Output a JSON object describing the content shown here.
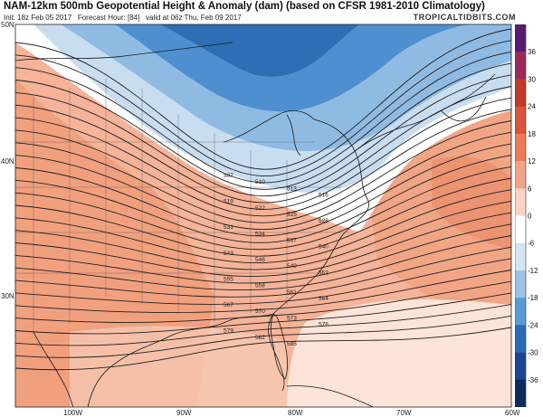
{
  "header": {
    "title": "NAM-12km 500mb Geopotential Height & Anomaly (dam) (based on CFSR 1981-2010 Climatology)",
    "init": "Init: 18z Feb 05 2017",
    "forecast_hour": "Forecast Hour: [84]",
    "valid": "valid at 06z Thu, Feb 09 2017",
    "site": "TROPICALTIDBITS.COM"
  },
  "axes": {
    "lat_labels": [
      "50N",
      "40N",
      "30N"
    ],
    "lon_labels": [
      "100W",
      "90W",
      "80W",
      "70W",
      "60W"
    ]
  },
  "colorbar": {
    "ticks": [
      "36",
      "30",
      "24",
      "18",
      "12",
      "6",
      "0",
      "-6",
      "-12",
      "-18",
      "-24",
      "-30",
      "-36"
    ],
    "colors": [
      "#5a1a6e",
      "#9b2a5a",
      "#c0392b",
      "#d9553c",
      "#eb7b5b",
      "#f3a488",
      "#fad3c2",
      "#ffffff",
      "#d4e4f3",
      "#9cc3e6",
      "#5a9bd5",
      "#2b6cb8",
      "#1a4790",
      "#0d2a5c"
    ]
  },
  "contours": {
    "height_labels": [
      "507",
      "510",
      "513",
      "516",
      "519",
      "522",
      "525",
      "528",
      "531",
      "534",
      "537",
      "540",
      "543",
      "546",
      "549",
      "552",
      "555",
      "558",
      "561",
      "564",
      "567",
      "570",
      "573",
      "576",
      "579",
      "582",
      "585"
    ]
  }
}
